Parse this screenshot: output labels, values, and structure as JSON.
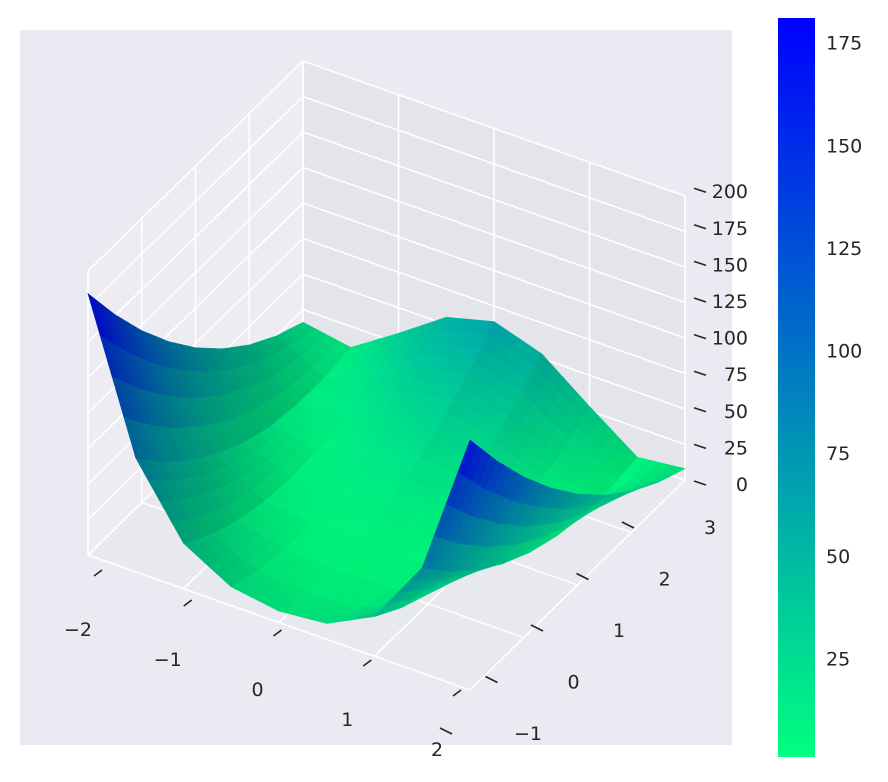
{
  "chart_data": {
    "type": "surface",
    "title": "",
    "xlabel": "",
    "ylabel": "",
    "zlabel": "",
    "colormap": "winter_r",
    "colormap_low": "#00ff80",
    "colormap_high": "#0000ff",
    "x": [
      -2,
      -1.5,
      -1,
      -0.5,
      0,
      0.5,
      1,
      1.5,
      2
    ],
    "y": [
      -1,
      -0.5,
      0,
      0.5,
      1,
      1.5,
      2,
      2.5,
      3
    ],
    "z_rows_by_x": [
      [
        184,
        150.8,
        121,
        94.8,
        72,
        52.8,
        37,
        24.8,
        16
      ],
      [
        80.2,
        59.2,
        41.7,
        27.7,
        17.2,
        10.2,
        6.7,
        6.7,
        10.2
      ],
      [
        32,
        19.8,
        11,
        5.8,
        4,
        5.8,
        11,
        19.8,
        32
      ],
      [
        13.2,
        6.2,
        2.7,
        2.7,
        6.2,
        13.2,
        23.7,
        37.7,
        55.2
      ],
      [
        8,
        2.8,
        1,
        2.8,
        8,
        16.8,
        29,
        44.8,
        64
      ],
      [
        11.2,
        4.2,
        0.7,
        0.7,
        4.2,
        11.2,
        21.7,
        35.7,
        53.2
      ],
      [
        28,
        15.8,
        7,
        1.8,
        0,
        1.8,
        7,
        15.8,
        28
      ],
      [
        74.2,
        53.2,
        35.7,
        21.7,
        11.2,
        4.2,
        0.7,
        0.7,
        4.2
      ],
      [
        176,
        142.8,
        113,
        86.8,
        64,
        44.8,
        29,
        16.8,
        8
      ]
    ],
    "xlim": [
      -2,
      2
    ],
    "ylim": [
      -1,
      3
    ],
    "zlim": [
      0,
      200
    ],
    "x_ticks": [
      "−2",
      "−1",
      "0",
      "1",
      "2"
    ],
    "y_ticks": [
      "−1",
      "0",
      "1",
      "2",
      "3"
    ],
    "z_ticks": [
      "0",
      "25",
      "50",
      "75",
      "100",
      "125",
      "150",
      "175",
      "200"
    ],
    "colorbar": {
      "range": [
        1,
        181
      ],
      "ticks": [
        25,
        50,
        75,
        100,
        125,
        150,
        175
      ],
      "tick_labels": [
        "25",
        "50",
        "75",
        "100",
        "125",
        "150",
        "175"
      ]
    },
    "grid": true,
    "view": {
      "elev": 30,
      "azim": -60
    }
  }
}
